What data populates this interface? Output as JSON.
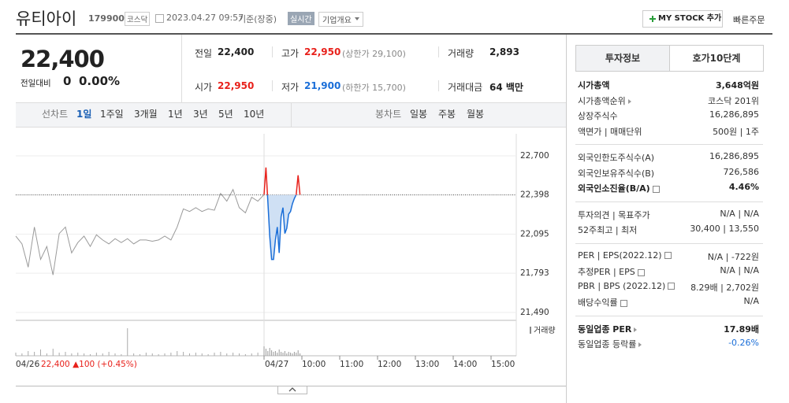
{
  "header": {
    "name": "유티아이",
    "code": "179900",
    "market": "코스닥",
    "datetime": "2023.04.27 09:57",
    "basis": "기준(장중)",
    "badge": "실시간",
    "company_button": "기업개요",
    "mystock_button": "MY STOCK 추가",
    "quick_order": "빠른주문"
  },
  "price": {
    "current": "22,400",
    "change_label": "전일대비",
    "change": "0",
    "change_rate": "0.00%"
  },
  "summary": [
    [
      {
        "label": "전일",
        "value": "22,400"
      },
      {
        "label": "고가",
        "value": "22,950",
        "note": "(상한가 29,100)",
        "color": "#e8211b"
      },
      {
        "label": "거래량",
        "value": "2,893"
      }
    ],
    [
      {
        "label": "시가",
        "value": "22,950",
        "color": "#e8211b"
      },
      {
        "label": "저가",
        "value": "21,900",
        "note": "(하한가 15,700)",
        "color": "#1a6ed8"
      },
      {
        "label": "거래대금",
        "value": "64 백만"
      }
    ]
  ],
  "chart_tabs": {
    "line_label": "선차트",
    "periods": [
      "1일",
      "1주일",
      "3개월",
      "1년",
      "3년",
      "5년",
      "10년"
    ],
    "selected": 0,
    "candle_label": "봉차트",
    "candles": [
      "일봉",
      "주봉",
      "월봉"
    ]
  },
  "chart_data": {
    "type": "line",
    "previous_day": {
      "label": "04/26",
      "close_label": "22,400 ▲100 (+0.45%)",
      "color": "#9a9a9a",
      "values": [
        22080,
        22020,
        21840,
        22150,
        21900,
        22000,
        21780,
        22100,
        22150,
        21950,
        22030,
        22080,
        22000,
        22090,
        22050,
        22020,
        22060,
        22030,
        22060,
        22020,
        22050,
        22050,
        22040,
        22050,
        22080,
        22050,
        22150,
        22290,
        22270,
        22300,
        22270,
        22290,
        22280,
        22410,
        22350,
        22440,
        22300,
        22260,
        22380,
        22350,
        22400
      ],
      "volume": [
        4,
        3,
        6,
        5,
        8,
        3,
        9,
        4,
        5,
        3,
        4,
        3,
        2,
        4,
        3,
        5,
        3,
        2,
        35,
        3,
        2,
        4,
        3,
        2,
        3,
        4,
        6,
        5,
        3,
        4,
        3,
        2,
        4,
        5,
        3,
        4,
        3,
        2,
        3,
        4,
        6
      ]
    },
    "today": {
      "label": "04/27",
      "color": "#1a6ed8",
      "up_color": "#e8211b",
      "fill": "#cfe0f4",
      "x": [
        0,
        3,
        6,
        9,
        12,
        15,
        18,
        21,
        24,
        27,
        30,
        33,
        36,
        39,
        42,
        45,
        48,
        51,
        54,
        57
      ],
      "values": [
        22400,
        22610,
        22350,
        22080,
        21900,
        21900,
        22050,
        22150,
        21950,
        22230,
        22300,
        22100,
        22140,
        22250,
        22270,
        22330,
        22370,
        22400,
        22550,
        22400
      ],
      "volume": [
        12,
        9,
        6,
        10,
        7,
        5,
        6,
        4,
        8,
        5,
        4,
        6,
        3,
        5,
        4,
        3,
        5,
        4,
        7,
        3
      ]
    },
    "ylim": [
      21490,
      22700
    ],
    "yticks": [
      {
        "value": 22700,
        "label": "22,700"
      },
      {
        "value": 22398,
        "label": "22,398"
      },
      {
        "value": 22095,
        "label": "22,095"
      },
      {
        "value": 21793,
        "label": "21,793"
      },
      {
        "value": 21490,
        "label": "21,490"
      }
    ],
    "dotted_tick": 1,
    "xlim": [
      0,
      400
    ],
    "xticks": [
      {
        "value": 0,
        "label": "04/27"
      },
      {
        "value": 60,
        "label": "10:00"
      },
      {
        "value": 120,
        "label": "11:00"
      },
      {
        "value": 180,
        "label": "12:00"
      },
      {
        "value": 240,
        "label": "13:00"
      },
      {
        "value": 300,
        "label": "14:00"
      },
      {
        "value": 360,
        "label": "15:00"
      }
    ],
    "volume_label": "거래량",
    "volume_ylim": [
      0,
      40
    ]
  },
  "side": {
    "tabs": [
      "투자정보",
      "호가10단계"
    ],
    "selected": 0,
    "groups": [
      [
        {
          "label": "시가총액",
          "value": "3,648억원",
          "bold": true
        },
        {
          "label": "시가총액순위",
          "value": "코스닥 201위",
          "arrow": true
        },
        {
          "label": "상장주식수",
          "value": "16,286,895"
        },
        {
          "label": "액면가 | 매매단위",
          "value": "500원 | 1주"
        }
      ],
      [
        {
          "label": "외국인한도주식수(A)",
          "value": "16,286,895"
        },
        {
          "label": "외국인보유주식수(B)",
          "value": "726,586"
        },
        {
          "label": "외국인소진율(B/A)",
          "value": "4.46%",
          "bold": true,
          "info": true
        }
      ],
      [
        {
          "label": "투자의견 | 목표주가",
          "value": "N/A | N/A"
        },
        {
          "label": "52주최고 | 최저",
          "value": "30,400 | 13,550"
        }
      ],
      [
        {
          "label": "PER | EPS(2022.12)",
          "value": "N/A | -722원",
          "info": true
        },
        {
          "label": "추정PER | EPS",
          "value": "N/A | N/A",
          "info": true
        },
        {
          "label": "PBR | BPS (2022.12)",
          "value": "8.29배 | 2,702원",
          "info": true
        },
        {
          "label": "배당수익률",
          "value": "N/A",
          "info": true
        }
      ],
      [
        {
          "label": "동일업종 PER",
          "value": "17.89배",
          "bold": true,
          "arrow": true
        },
        {
          "label": "동일업종 등락률",
          "value": "-0.26%",
          "arrow": true,
          "color": "#1a6ed8"
        }
      ]
    ]
  }
}
